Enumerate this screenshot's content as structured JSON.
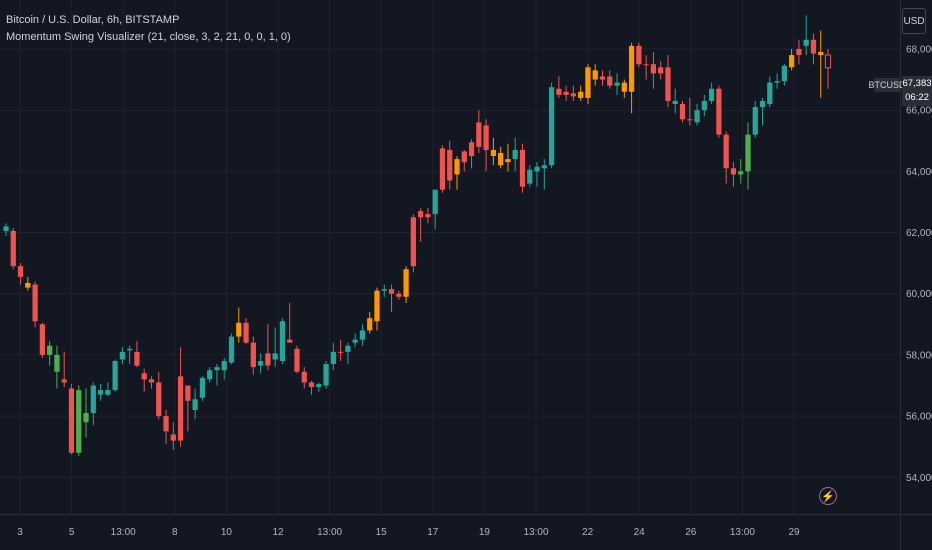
{
  "legend": {
    "symbol_line": "Bitcoin / U.S. Dollar, 6h, BITSTAMP",
    "indicator_line": "Momentum Swing Visualizer (21, close, 3, 2, 21, 0, 0, 1, 0)"
  },
  "currency": "USD",
  "price_tag": {
    "symbol": "BTCUSD",
    "last_price": "67,383",
    "countdown": "06:22"
  },
  "colors": {
    "background": "#131722",
    "grid": "#1e222d",
    "bull_teal": "#26a69a",
    "bull_green": "#4caf50",
    "bear_red": "#ef5350",
    "orange": "#ff9800",
    "axis_text": "#b2b5be"
  },
  "icons": {
    "flash": "lightning-bolt-icon"
  },
  "chart_data": {
    "type": "candlestick",
    "ylim": [
      52800,
      69600
    ],
    "y_ticks": [
      54000,
      56000,
      58000,
      60000,
      62000,
      64000,
      66000,
      68000
    ],
    "y_tick_labels": [
      "54,000",
      "56,000",
      "58,000",
      "60,000",
      "62,000",
      "64,000",
      "66,000",
      "68,000"
    ],
    "x_tick_labels": [
      "3",
      "5",
      "13:00",
      "8",
      "10",
      "12",
      "13:00",
      "15",
      "17",
      "19",
      "13:00",
      "22",
      "24",
      "26",
      "13:00",
      "29"
    ],
    "color_legend": {
      "t": "teal",
      "g": "green",
      "r": "red",
      "o": "orange"
    },
    "candles": [
      [
        62200,
        62300,
        61900,
        62050,
        "t"
      ],
      [
        62050,
        62150,
        60800,
        60900,
        "r"
      ],
      [
        60900,
        61000,
        60300,
        60550,
        "r"
      ],
      [
        60350,
        60550,
        60100,
        60200,
        "o"
      ],
      [
        60300,
        60400,
        58900,
        59100,
        "r"
      ],
      [
        59000,
        59050,
        57900,
        58000,
        "r"
      ],
      [
        58000,
        58450,
        57650,
        58300,
        "g"
      ],
      [
        58000,
        58300,
        56900,
        57450,
        "g"
      ],
      [
        57200,
        58100,
        56950,
        57100,
        "r"
      ],
      [
        56900,
        57050,
        54750,
        54800,
        "r"
      ],
      [
        54800,
        57000,
        54700,
        56850,
        "g"
      ],
      [
        55800,
        56900,
        55300,
        56100,
        "g"
      ],
      [
        56100,
        57100,
        55700,
        57000,
        "t"
      ],
      [
        56850,
        57050,
        56500,
        56700,
        "t"
      ],
      [
        56700,
        57100,
        56650,
        56850,
        "t"
      ],
      [
        56850,
        57850,
        56800,
        57800,
        "t"
      ],
      [
        57850,
        58250,
        57700,
        58100,
        "t"
      ],
      [
        58150,
        58300,
        57700,
        58200,
        "t"
      ],
      [
        58100,
        58450,
        57600,
        57650,
        "r"
      ],
      [
        57400,
        57550,
        56800,
        57200,
        "r"
      ],
      [
        57200,
        57300,
        56900,
        57100,
        "r"
      ],
      [
        57100,
        57450,
        55900,
        56000,
        "r"
      ],
      [
        56000,
        56200,
        55100,
        55500,
        "r"
      ],
      [
        55400,
        55800,
        54900,
        55200,
        "r"
      ],
      [
        55200,
        58250,
        55000,
        57300,
        "r"
      ],
      [
        56500,
        57000,
        55500,
        57000,
        "r"
      ],
      [
        56200,
        56900,
        55900,
        56550,
        "t"
      ],
      [
        56600,
        57300,
        56500,
        57250,
        "t"
      ],
      [
        57200,
        57600,
        57100,
        57500,
        "t"
      ],
      [
        57500,
        57700,
        57000,
        57600,
        "t"
      ],
      [
        57500,
        57900,
        57200,
        57800,
        "t"
      ],
      [
        57750,
        58700,
        57700,
        58600,
        "t"
      ],
      [
        58600,
        59550,
        58400,
        59050,
        "o"
      ],
      [
        59050,
        59200,
        58350,
        58400,
        "r"
      ],
      [
        58400,
        58600,
        57350,
        57600,
        "r"
      ],
      [
        57800,
        58050,
        57400,
        57650,
        "t"
      ],
      [
        57650,
        59000,
        57500,
        58050,
        "r"
      ],
      [
        58050,
        58900,
        57600,
        57850,
        "t"
      ],
      [
        57800,
        59200,
        57700,
        59100,
        "t"
      ],
      [
        58500,
        59700,
        58400,
        58400,
        "r"
      ],
      [
        58200,
        58300,
        57400,
        57450,
        "r"
      ],
      [
        57450,
        57600,
        56900,
        57100,
        "r"
      ],
      [
        57100,
        57150,
        56700,
        56950,
        "r"
      ],
      [
        57050,
        57100,
        56800,
        56950,
        "t"
      ],
      [
        57000,
        57800,
        56900,
        57700,
        "t"
      ],
      [
        57700,
        58400,
        57500,
        58100,
        "t"
      ],
      [
        58100,
        58500,
        57800,
        58100,
        "r"
      ],
      [
        58100,
        58400,
        57700,
        58300,
        "t"
      ],
      [
        58400,
        58700,
        58250,
        58500,
        "t"
      ],
      [
        58500,
        59000,
        58300,
        58800,
        "t"
      ],
      [
        58800,
        59400,
        58700,
        59200,
        "o"
      ],
      [
        59100,
        60200,
        58800,
        60100,
        "o"
      ],
      [
        60100,
        60300,
        59900,
        60150,
        "t"
      ],
      [
        60150,
        60300,
        59400,
        60000,
        "r"
      ],
      [
        60000,
        60100,
        59800,
        59900,
        "r"
      ],
      [
        59900,
        60900,
        59700,
        60800,
        "o"
      ],
      [
        60900,
        62600,
        60700,
        62500,
        "r"
      ],
      [
        62700,
        62800,
        61700,
        62500,
        "r"
      ],
      [
        62500,
        62800,
        62300,
        62600,
        "r"
      ],
      [
        62600,
        63400,
        62100,
        63400,
        "t"
      ],
      [
        63400,
        64850,
        63300,
        64750,
        "r"
      ],
      [
        64700,
        65000,
        63400,
        63700,
        "r"
      ],
      [
        63900,
        64500,
        63400,
        64400,
        "o"
      ],
      [
        64300,
        64700,
        64000,
        64650,
        "r"
      ],
      [
        64500,
        65050,
        64100,
        64950,
        "r"
      ],
      [
        64800,
        66000,
        64600,
        65600,
        "r"
      ],
      [
        65500,
        65700,
        64000,
        64700,
        "r"
      ],
      [
        64700,
        65100,
        64200,
        64500,
        "o"
      ],
      [
        64600,
        64800,
        64100,
        64200,
        "o"
      ],
      [
        64300,
        64900,
        64000,
        64400,
        "o"
      ],
      [
        64400,
        65100,
        64000,
        64700,
        "t"
      ],
      [
        64700,
        64900,
        63300,
        63500,
        "r"
      ],
      [
        63600,
        64200,
        63500,
        64050,
        "t"
      ],
      [
        64000,
        64300,
        63500,
        64150,
        "t"
      ],
      [
        64100,
        64400,
        63400,
        64200,
        "t"
      ],
      [
        64200,
        66900,
        64100,
        66750,
        "t"
      ],
      [
        66700,
        67100,
        66400,
        66500,
        "r"
      ],
      [
        66500,
        66800,
        66300,
        66600,
        "r"
      ],
      [
        66550,
        66800,
        66300,
        66450,
        "r"
      ],
      [
        66400,
        66800,
        66300,
        66600,
        "o"
      ],
      [
        66400,
        67500,
        66200,
        67400,
        "o"
      ],
      [
        67300,
        67500,
        66800,
        67000,
        "o"
      ],
      [
        67000,
        67300,
        66800,
        67100,
        "r"
      ],
      [
        67100,
        67300,
        66700,
        66800,
        "r"
      ],
      [
        66800,
        67200,
        66500,
        66900,
        "t"
      ],
      [
        66900,
        67000,
        66400,
        66600,
        "o"
      ],
      [
        66600,
        68200,
        65900,
        68100,
        "o"
      ],
      [
        68100,
        68200,
        67400,
        67500,
        "r"
      ],
      [
        67500,
        67800,
        67000,
        67500,
        "r"
      ],
      [
        67500,
        67900,
        66700,
        67200,
        "r"
      ],
      [
        67200,
        67600,
        67000,
        67400,
        "r"
      ],
      [
        67400,
        67800,
        66100,
        66300,
        "r"
      ],
      [
        66300,
        66700,
        65900,
        66200,
        "t"
      ],
      [
        66200,
        66300,
        65600,
        65700,
        "r"
      ],
      [
        65700,
        66400,
        65500,
        65700,
        "r"
      ],
      [
        65600,
        66200,
        65500,
        66000,
        "t"
      ],
      [
        66000,
        66500,
        65800,
        66300,
        "t"
      ],
      [
        66300,
        66900,
        66200,
        66700,
        "t"
      ],
      [
        66700,
        66800,
        65100,
        65200,
        "r"
      ],
      [
        65200,
        65300,
        63600,
        64100,
        "r"
      ],
      [
        64100,
        64300,
        63500,
        63900,
        "r"
      ],
      [
        63900,
        64400,
        63600,
        64000,
        "g"
      ],
      [
        64000,
        65600,
        63400,
        65200,
        "g"
      ],
      [
        65200,
        66300,
        65100,
        66100,
        "t"
      ],
      [
        66100,
        66400,
        65500,
        66300,
        "t"
      ],
      [
        66200,
        67100,
        66100,
        66900,
        "t"
      ],
      [
        66900,
        67200,
        66700,
        66950,
        "t"
      ],
      [
        66950,
        67500,
        66800,
        67450,
        "t"
      ],
      [
        67400,
        68000,
        67300,
        67800,
        "o"
      ],
      [
        67800,
        68300,
        67500,
        68000,
        "r"
      ],
      [
        68100,
        69100,
        67800,
        68300,
        "t"
      ],
      [
        68300,
        68500,
        67500,
        67850,
        "r"
      ],
      [
        67900,
        68600,
        66400,
        67800,
        "o"
      ],
      [
        67800,
        68000,
        66700,
        67383,
        "r"
      ]
    ]
  }
}
